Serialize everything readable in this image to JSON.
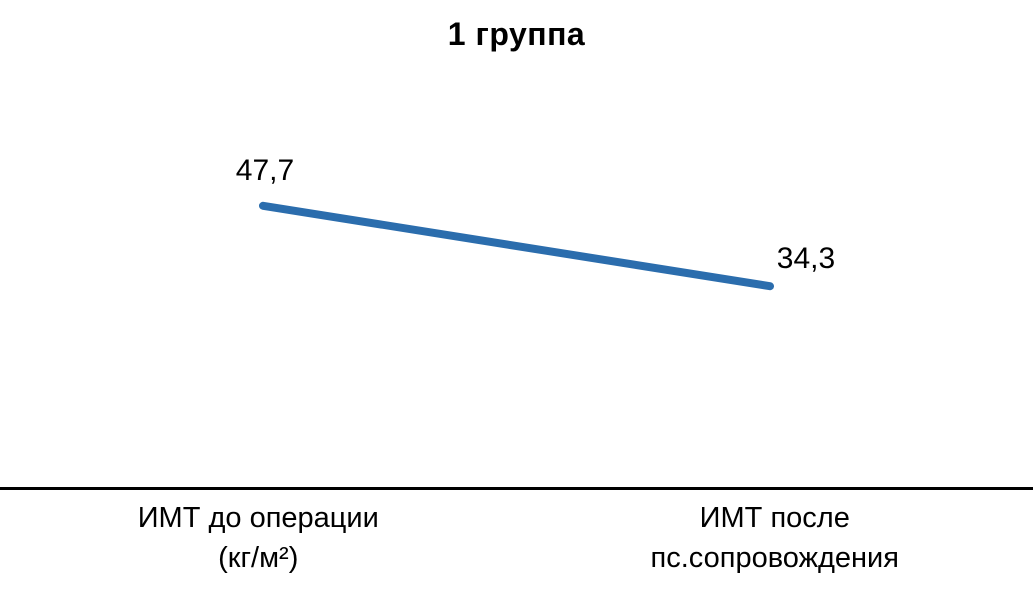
{
  "title": "1 группа",
  "chart_data": {
    "type": "line",
    "title": "1 группа",
    "categories": [
      "ИМТ до операции (кг/м²)",
      "ИМТ после пс.сопровождения"
    ],
    "series": [
      {
        "name": "ИМТ",
        "values": [
          47.7,
          34.3
        ],
        "color": "#2B6DAD"
      }
    ],
    "data_labels": [
      "47,7",
      "34,3"
    ],
    "xlabel": "",
    "ylabel": "",
    "legend_position": "none",
    "grid": false,
    "axis_line_color": "#000000"
  },
  "category_labels": {
    "first": {
      "line1": "ИМТ до операции",
      "line2": "(кг/м²)"
    },
    "second": {
      "line1": "ИМТ после",
      "line2": "пс.сопровождения"
    }
  }
}
